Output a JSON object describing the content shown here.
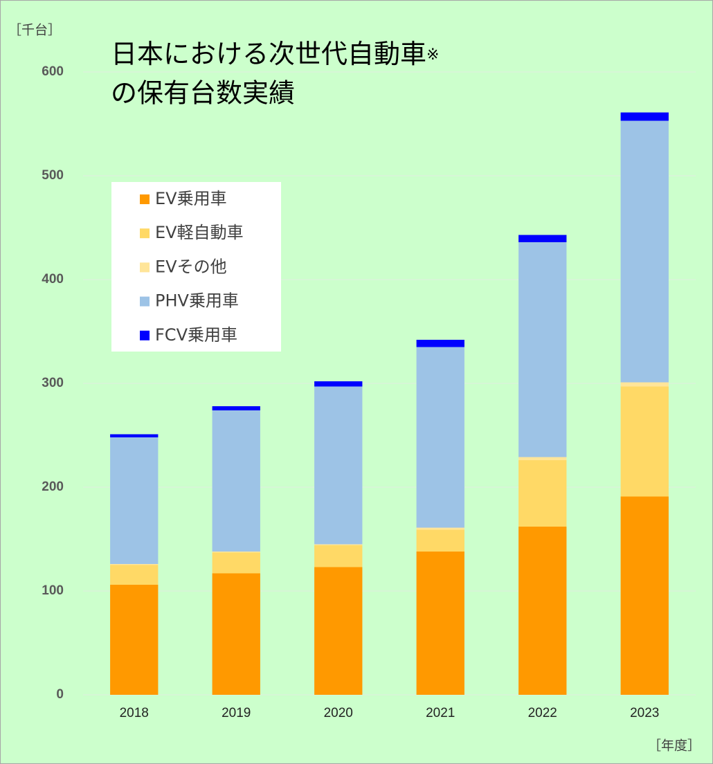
{
  "chart_data": {
    "type": "stacked_bar",
    "title": [
      "日本における次世代自動車",
      "の保有台数実績"
    ],
    "title_note": "※",
    "y_unit_label": "［千台］",
    "x_unit_label": "［年度］",
    "categories": [
      "2018",
      "2019",
      "2020",
      "2021",
      "2022",
      "2023"
    ],
    "series": [
      {
        "name": "EV乗用車",
        "color": "#ff9900",
        "values": [
          106,
          117,
          123,
          138,
          162,
          191
        ]
      },
      {
        "name": "EV軽自動車",
        "color": "#ffd966",
        "values": [
          19,
          20,
          21,
          21,
          64,
          106
        ]
      },
      {
        "name": "EVその他",
        "color": "#ffe599",
        "values": [
          1,
          1,
          1,
          2,
          3,
          4
        ]
      },
      {
        "name": "PHV乗用車",
        "color": "#9dc3e6",
        "values": [
          122,
          136,
          152,
          174,
          207,
          252
        ]
      },
      {
        "name": "FCV乗用車",
        "color": "#0000ff",
        "values": [
          3,
          4,
          5,
          7,
          7,
          8
        ]
      }
    ],
    "ylim": [
      0,
      600
    ],
    "yticks": [
      0,
      100,
      200,
      300,
      400,
      500,
      600
    ],
    "grid": true
  }
}
